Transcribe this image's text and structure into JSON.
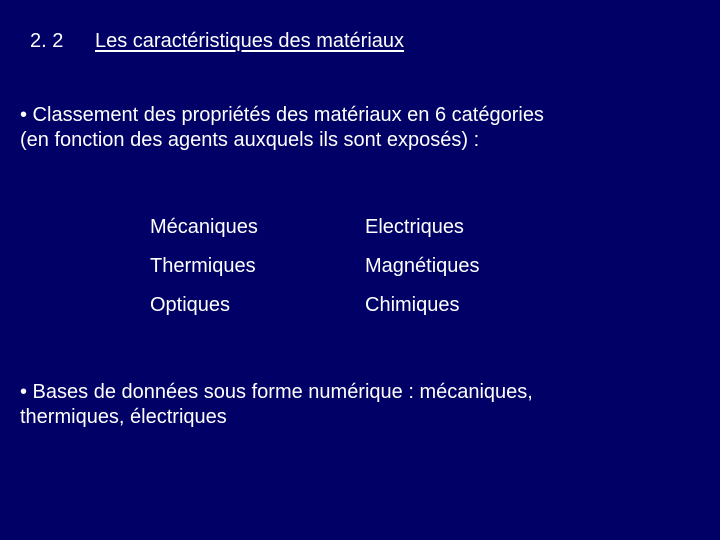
{
  "background_color": "#000066",
  "text_color": "#ffffff",
  "font_family": "Arial, Helvetica, sans-serif",
  "font_size_pt": 20,
  "header": {
    "section_number": "2. 2",
    "section_title": "Les caractéristiques des matériaux"
  },
  "bullet1": {
    "line1": "• Classement des propriétés des matériaux en 6 catégories",
    "line2": "(en fonction des agents auxquels ils sont exposés) :"
  },
  "categories": {
    "rows": [
      {
        "left": "Mécaniques",
        "right": "Electriques"
      },
      {
        "left": "Thermiques",
        "right": "Magnétiques"
      },
      {
        "left": "Optiques",
        "right": "Chimiques"
      }
    ]
  },
  "bullet2": {
    "line1": "• Bases de données sous forme numérique : mécaniques,",
    "line2": "thermiques, électriques"
  }
}
